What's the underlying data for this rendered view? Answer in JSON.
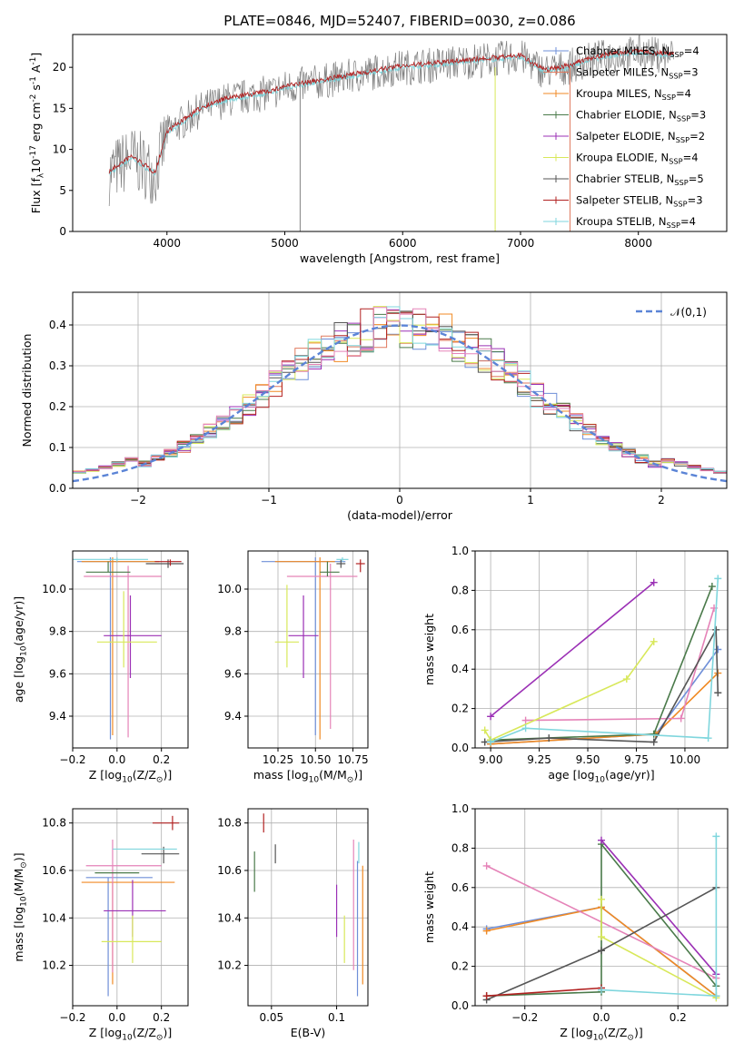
{
  "figure_title": "PLATE=0846, MJD=52407, FIBERID=0030, z=0.086",
  "colors": {
    "Chabrier MILES": "#6f8fd8",
    "Salpeter MILES": "#e07a5f",
    "Kroupa MILES": "#f08a24",
    "Chabrier ELODIE": "#4a7a4a",
    "Salpeter ELODIE": "#9b30b5",
    "Kroupa ELODIE": "#d8e85a",
    "Chabrier STELIB": "#555555",
    "Salpeter STELIB": "#b22222",
    "Kroupa STELIB": "#7fd6dd",
    "pink": "#e583b8",
    "data": "#808080",
    "normal": "#5b84d6"
  },
  "chart_data": [
    {
      "id": "spectrum",
      "type": "line",
      "xlabel": "wavelength [Angstrom, rest frame]",
      "ylabel": "Flux [f$_\\lambda$10$^{-17}$ erg cm$^{-2}$ s$^{-1}$ A$^{-1}$]",
      "xlim": [
        3200,
        8750
      ],
      "ylim": [
        0,
        24
      ],
      "xticks": [
        4000,
        5000,
        6000,
        7000,
        8000
      ],
      "yticks": [
        0,
        5,
        10,
        15,
        20
      ],
      "grid": false,
      "legend_position": "right",
      "legend": [
        {
          "name": "Chabrier MILES, N$_{SSP}$=4",
          "color": "#6f8fd8"
        },
        {
          "name": "Salpeter MILES, N$_{SSP}$=3",
          "color": "#e07a5f"
        },
        {
          "name": "Kroupa MILES, N$_{SSP}$=4",
          "color": "#f08a24"
        },
        {
          "name": "Chabrier ELODIE, N$_{SSP}$=3",
          "color": "#4a7a4a"
        },
        {
          "name": "Salpeter ELODIE, N$_{SSP}$=2",
          "color": "#9b30b5"
        },
        {
          "name": "Kroupa ELODIE, N$_{SSP}$=4",
          "color": "#d8e85a"
        },
        {
          "name": "Chabrier STELIB, N$_{SSP}$=5",
          "color": "#555555"
        },
        {
          "name": "Salpeter STELIB, N$_{SSP}$=3",
          "color": "#b22222"
        },
        {
          "name": "Kroupa STELIB, N$_{SSP}$=4",
          "color": "#7fd6dd"
        }
      ],
      "continuum": {
        "x": [
          3500,
          3700,
          3900,
          4000,
          4100,
          4300,
          4500,
          4700,
          4900,
          5000,
          5200,
          5400,
          5600,
          5800,
          6000,
          6200,
          6400,
          6600,
          6800,
          7000,
          7200,
          7400,
          7600,
          7800,
          8000,
          8200,
          8300
        ],
        "y": [
          7,
          9,
          7,
          12,
          13,
          15,
          16,
          16.5,
          17,
          17.5,
          18,
          18.5,
          19,
          19.5,
          20,
          20.2,
          20.5,
          20.8,
          21,
          21.3,
          19.5,
          20,
          21,
          21.5,
          21.8,
          21.5,
          21.5
        ]
      },
      "spikes": [
        {
          "x": 5130,
          "from": 0,
          "to": 19.5,
          "color": "#808080"
        },
        {
          "x": 6785,
          "from": 0,
          "to": 20,
          "color": "#d8e85a"
        },
        {
          "x": 7420,
          "from": 0,
          "to": 20,
          "color": "#e07a5f"
        }
      ]
    },
    {
      "id": "residuals",
      "type": "bar",
      "xlabel": "(data-model)/error",
      "ylabel": "Normed distribution",
      "xlim": [
        -2.5,
        2.5
      ],
      "ylim": [
        0,
        0.48
      ],
      "xticks": [
        -2,
        -1,
        0,
        1,
        2
      ],
      "yticks": [
        0.0,
        0.1,
        0.2,
        0.3,
        0.4
      ],
      "grid": true,
      "legend_position": "top-right",
      "normal_label": "$\\mathcal{N}(0,1)$",
      "bin_width": 0.1
    },
    {
      "id": "age-vs-Z",
      "type": "scatter",
      "xlabel": "Z [log$_{10}$(Z/Z$_\\odot$)]",
      "ylabel": "age  [log$_{10}$(age/yr)]",
      "xlim": [
        -0.2,
        0.32
      ],
      "ylim": [
        9.25,
        10.18
      ],
      "xticks": [
        -0.2,
        0.0,
        0.2
      ],
      "yticks": [
        9.4,
        9.6,
        9.8,
        10.0
      ],
      "grid": true,
      "errorbars": [
        {
          "model": "Chabrier MILES",
          "x": -0.03,
          "xerr": [
            0.15,
            0.2
          ],
          "y": 10.13,
          "yerr": [
            0.84,
            0.02
          ]
        },
        {
          "model": "Kroupa MILES",
          "x": -0.02,
          "xerr": [
            0.14,
            0.21
          ],
          "y": 10.13,
          "yerr": [
            0.82,
            0.02
          ]
        },
        {
          "model": "pink",
          "x": 0.05,
          "xerr": [
            0.2,
            0.15
          ],
          "y": 10.06,
          "yerr": [
            0.76,
            0.05
          ]
        },
        {
          "model": "Chabrier ELODIE",
          "x": -0.04,
          "xerr": [
            0.1,
            0.1
          ],
          "y": 10.08,
          "yerr": [
            0.0,
            0.05
          ]
        },
        {
          "model": "Salpeter ELODIE",
          "x": 0.06,
          "xerr": [
            0.12,
            0.14
          ],
          "y": 9.78,
          "yerr": [
            0.2,
            0.19
          ]
        },
        {
          "model": "Kroupa ELODIE",
          "x": 0.03,
          "xerr": [
            0.12,
            0.15
          ],
          "y": 9.75,
          "yerr": [
            0.12,
            0.24
          ]
        },
        {
          "model": "Chabrier STELIB",
          "x": 0.23,
          "xerr": [
            0.1,
            0.07
          ],
          "y": 10.12,
          "yerr": [
            0.02,
            0.02
          ]
        },
        {
          "model": "Salpeter STELIB",
          "x": 0.24,
          "xerr": [
            0.07,
            0.05
          ],
          "y": 10.13,
          "yerr": [
            0.02,
            0.01
          ]
        },
        {
          "model": "Kroupa STELIB",
          "x": 0.0,
          "xerr": [
            0.2,
            0.14
          ],
          "y": 10.14,
          "yerr": [
            0.01,
            0.01
          ]
        }
      ]
    },
    {
      "id": "age-vs-mass",
      "type": "scatter",
      "xlabel": "mass [log$_{10}$(M/M$_\\odot$)]",
      "ylabel": "",
      "xlim": [
        10.05,
        10.85
      ],
      "ylim": [
        9.25,
        10.18
      ],
      "xticks": [
        10.25,
        10.5,
        10.75
      ],
      "yticks": [
        9.4,
        9.6,
        9.8,
        10.0
      ],
      "grid": true,
      "errorbars": [
        {
          "model": "Chabrier MILES",
          "x": 10.5,
          "xerr": [
            0.36,
            0.2
          ],
          "y": 10.13,
          "yerr": [
            0.82,
            0.02
          ]
        },
        {
          "model": "Kroupa MILES",
          "x": 10.53,
          "xerr": [
            0.3,
            0.1
          ],
          "y": 10.13,
          "yerr": [
            0.84,
            0.02
          ]
        },
        {
          "model": "pink",
          "x": 10.6,
          "xerr": [
            0.29,
            0.18
          ],
          "y": 10.06,
          "yerr": [
            0.72,
            0.06
          ]
        },
        {
          "model": "Chabrier ELODIE",
          "x": 10.58,
          "xerr": [
            0.05,
            0.08
          ],
          "y": 10.08,
          "yerr": [
            0.02,
            0.05
          ]
        },
        {
          "model": "Salpeter ELODIE",
          "x": 10.42,
          "xerr": [
            0.1,
            0.1
          ],
          "y": 9.78,
          "yerr": [
            0.2,
            0.19
          ]
        },
        {
          "model": "Kroupa ELODIE",
          "x": 10.31,
          "xerr": [
            0.08,
            0.08
          ],
          "y": 9.75,
          "yerr": [
            0.12,
            0.27
          ]
        },
        {
          "model": "Chabrier STELIB",
          "x": 10.67,
          "xerr": [
            0.03,
            0.03
          ],
          "y": 10.12,
          "yerr": [
            0.02,
            0.02
          ]
        },
        {
          "model": "Salpeter STELIB",
          "x": 10.8,
          "xerr": [
            0.03,
            0.03
          ],
          "y": 10.12,
          "yerr": [
            0.04,
            0.02
          ]
        },
        {
          "model": "Kroupa STELIB",
          "x": 10.68,
          "xerr": [
            0.04,
            0.04
          ],
          "y": 10.14,
          "yerr": [
            0.01,
            0.01
          ]
        }
      ]
    },
    {
      "id": "weight-vs-age",
      "type": "line",
      "xlabel": "age  [log$_{10}$(age/yr)]",
      "ylabel": "mass weight",
      "xlim": [
        8.92,
        10.22
      ],
      "ylim": [
        0,
        1
      ],
      "xticks": [
        9.0,
        9.25,
        9.5,
        9.75,
        10.0
      ],
      "yticks": [
        0.0,
        0.2,
        0.4,
        0.6,
        0.8,
        1.0
      ],
      "grid": true,
      "series": [
        {
          "model": "Chabrier MILES",
          "x": [
            9.0,
            9.85,
            10.17
          ],
          "y": [
            0.02,
            0.07,
            0.5
          ]
        },
        {
          "model": "Kroupa MILES",
          "x": [
            9.0,
            9.85,
            10.17
          ],
          "y": [
            0.02,
            0.07,
            0.38
          ]
        },
        {
          "model": "pink",
          "x": [
            9.18,
            9.98,
            10.15
          ],
          "y": [
            0.14,
            0.15,
            0.71
          ]
        },
        {
          "model": "Chabrier ELODIE",
          "x": [
            9.0,
            9.84,
            10.14
          ],
          "y": [
            0.04,
            0.07,
            0.82
          ]
        },
        {
          "model": "Salpeter ELODIE",
          "x": [
            9.0,
            9.84
          ],
          "y": [
            0.16,
            0.84
          ]
        },
        {
          "model": "Kroupa ELODIE",
          "x": [
            8.97,
            9.0,
            9.7,
            9.84
          ],
          "y": [
            0.09,
            0.04,
            0.35,
            0.54
          ]
        },
        {
          "model": "Chabrier STELIB",
          "x": [
            8.97,
            9.3,
            9.84,
            10.16,
            10.17
          ],
          "y": [
            0.03,
            0.05,
            0.03,
            0.6,
            0.28
          ]
        },
        {
          "model": "Kroupa STELIB",
          "x": [
            9.0,
            9.18,
            10.12,
            10.17
          ],
          "y": [
            0.03,
            0.1,
            0.05,
            0.86
          ]
        }
      ]
    },
    {
      "id": "mass-vs-Z",
      "type": "scatter",
      "xlabel": "Z [log$_{10}$(Z/Z$_\\odot$)]",
      "ylabel": "mass [log$_{10}$(M/M$_\\odot$)]",
      "xlim": [
        -0.2,
        0.32
      ],
      "ylim": [
        10.03,
        10.86
      ],
      "xticks": [
        -0.2,
        0.0,
        0.2
      ],
      "yticks": [
        10.2,
        10.4,
        10.6,
        10.8
      ],
      "grid": true,
      "errorbars": [
        {
          "model": "Chabrier MILES",
          "x": -0.04,
          "xerr": [
            0.1,
            0.2
          ],
          "y": 10.57,
          "yerr": [
            0.5,
            0.0
          ]
        },
        {
          "model": "Kroupa MILES",
          "x": -0.02,
          "xerr": [
            0.14,
            0.28
          ],
          "y": 10.55,
          "yerr": [
            0.43,
            0.0
          ]
        },
        {
          "model": "pink",
          "x": -0.02,
          "xerr": [
            0.12,
            0.22
          ],
          "y": 10.62,
          "yerr": [
            0.45,
            0.11
          ]
        },
        {
          "model": "Chabrier ELODIE",
          "x": 0.0,
          "xerr": [
            0.1,
            0.1
          ],
          "y": 10.59,
          "yerr": [
            0.0,
            0.0
          ]
        },
        {
          "model": "Salpeter ELODIE",
          "x": 0.07,
          "xerr": [
            0.13,
            0.15
          ],
          "y": 10.43,
          "yerr": [
            0.11,
            0.13
          ]
        },
        {
          "model": "Kroupa ELODIE",
          "x": 0.07,
          "xerr": [
            0.14,
            0.13
          ],
          "y": 10.3,
          "yerr": [
            0.09,
            0.11
          ]
        },
        {
          "model": "Chabrier STELIB",
          "x": 0.21,
          "xerr": [
            0.1,
            0.07
          ],
          "y": 10.67,
          "yerr": [
            0.04,
            0.03
          ]
        },
        {
          "model": "Salpeter STELIB",
          "x": 0.25,
          "xerr": [
            0.09,
            0.03
          ],
          "y": 10.8,
          "yerr": [
            0.03,
            0.03
          ]
        },
        {
          "model": "Kroupa STELIB",
          "x": 0.1,
          "xerr": [
            0.12,
            0.17
          ],
          "y": 10.69,
          "yerr": [
            0.0,
            0.0
          ]
        }
      ]
    },
    {
      "id": "mass-vs-ebv",
      "type": "scatter",
      "xlabel": "E(B-V)",
      "ylabel": "",
      "xlim": [
        0.032,
        0.124
      ],
      "ylim": [
        10.03,
        10.86
      ],
      "xticks": [
        0.05,
        0.1
      ],
      "yticks": [
        10.2,
        10.4,
        10.6,
        10.8
      ],
      "grid": true,
      "errorbars": [
        {
          "model": "Chabrier MILES",
          "x": 0.116,
          "yerr": [
            0.5,
            0.07
          ],
          "y": 10.57
        },
        {
          "model": "Kroupa MILES",
          "x": 0.12,
          "yerr": [
            0.43,
            0.07
          ],
          "y": 10.55
        },
        {
          "model": "pink",
          "x": 0.113,
          "yerr": [
            0.44,
            0.11
          ],
          "y": 10.62
        },
        {
          "model": "Chabrier ELODIE",
          "x": 0.037,
          "yerr": [
            0.08,
            0.09
          ],
          "y": 10.59
        },
        {
          "model": "Salpeter ELODIE",
          "x": 0.1,
          "yerr": [
            0.11,
            0.11
          ],
          "y": 10.43
        },
        {
          "model": "Kroupa ELODIE",
          "x": 0.106,
          "yerr": [
            0.09,
            0.11
          ],
          "y": 10.3
        },
        {
          "model": "Chabrier STELIB",
          "x": 0.053,
          "yerr": [
            0.04,
            0.04
          ],
          "y": 10.67
        },
        {
          "model": "Salpeter STELIB",
          "x": 0.044,
          "yerr": [
            0.04,
            0.04
          ],
          "y": 10.8
        },
        {
          "model": "Kroupa STELIB",
          "x": 0.117,
          "yerr": [
            0.06,
            0.03
          ],
          "y": 10.69
        }
      ]
    },
    {
      "id": "weight-vs-Z",
      "type": "line",
      "xlabel": "Z [log$_{10}$(Z/Z$_\\odot$)]",
      "ylabel": "mass weight",
      "xlim": [
        -0.33,
        0.33
      ],
      "ylim": [
        0,
        1
      ],
      "xticks": [
        -0.2,
        0.0,
        0.2
      ],
      "yticks": [
        0.0,
        0.2,
        0.4,
        0.6,
        0.8,
        1.0
      ],
      "grid": true,
      "series": [
        {
          "model": "Chabrier MILES",
          "x": [
            -0.3,
            0.0,
            0.3
          ],
          "y": [
            0.39,
            0.5,
            0.05
          ]
        },
        {
          "model": "Kroupa MILES",
          "x": [
            -0.3,
            0.0,
            0.3
          ],
          "y": [
            0.38,
            0.5,
            0.05
          ]
        },
        {
          "model": "pink",
          "x": [
            -0.3,
            0.3
          ],
          "y": [
            0.71,
            0.14
          ]
        },
        {
          "model": "Chabrier ELODIE",
          "x": [
            -0.3,
            0.0,
            0.0,
            0.3
          ],
          "y": [
            0.05,
            0.07,
            0.82,
            0.1
          ]
        },
        {
          "model": "Salpeter ELODIE",
          "x": [
            0.0,
            0.3
          ],
          "y": [
            0.84,
            0.16
          ]
        },
        {
          "model": "Kroupa ELODIE",
          "x": [
            0.0,
            0.0,
            0.3
          ],
          "y": [
            0.54,
            0.35,
            0.04
          ]
        },
        {
          "model": "Chabrier STELIB",
          "x": [
            -0.3,
            0.0,
            0.3
          ],
          "y": [
            0.03,
            0.28,
            0.6
          ]
        },
        {
          "model": "Salpeter STELIB",
          "x": [
            -0.3,
            0.0
          ],
          "y": [
            0.05,
            0.09
          ]
        },
        {
          "model": "Kroupa STELIB",
          "x": [
            0.0,
            0.3,
            0.3
          ],
          "y": [
            0.08,
            0.05,
            0.86
          ]
        }
      ]
    }
  ]
}
